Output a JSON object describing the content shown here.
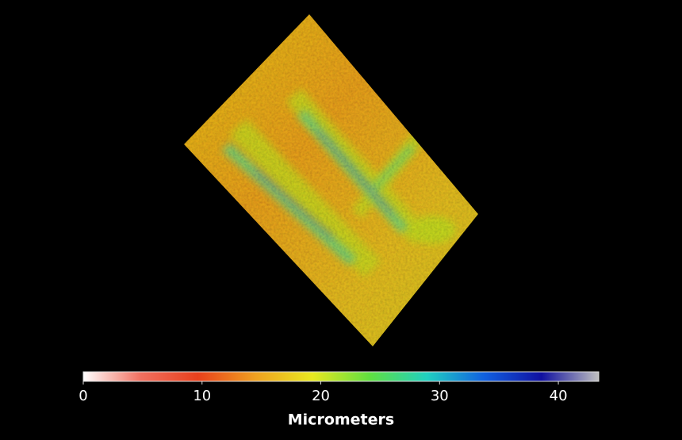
{
  "colorbar": {
    "label": "Micrometers",
    "lim": [
      0,
      43.4
    ],
    "ticks": [
      0,
      10,
      20,
      30,
      40
    ],
    "colors": [
      "#ffffff",
      "#f07060",
      "#e8401c",
      "#f0a020",
      "#e8e820",
      "#60e040",
      "#20d0c0",
      "#1060e0",
      "#1010a0",
      "#c0c0c0"
    ]
  }
}
